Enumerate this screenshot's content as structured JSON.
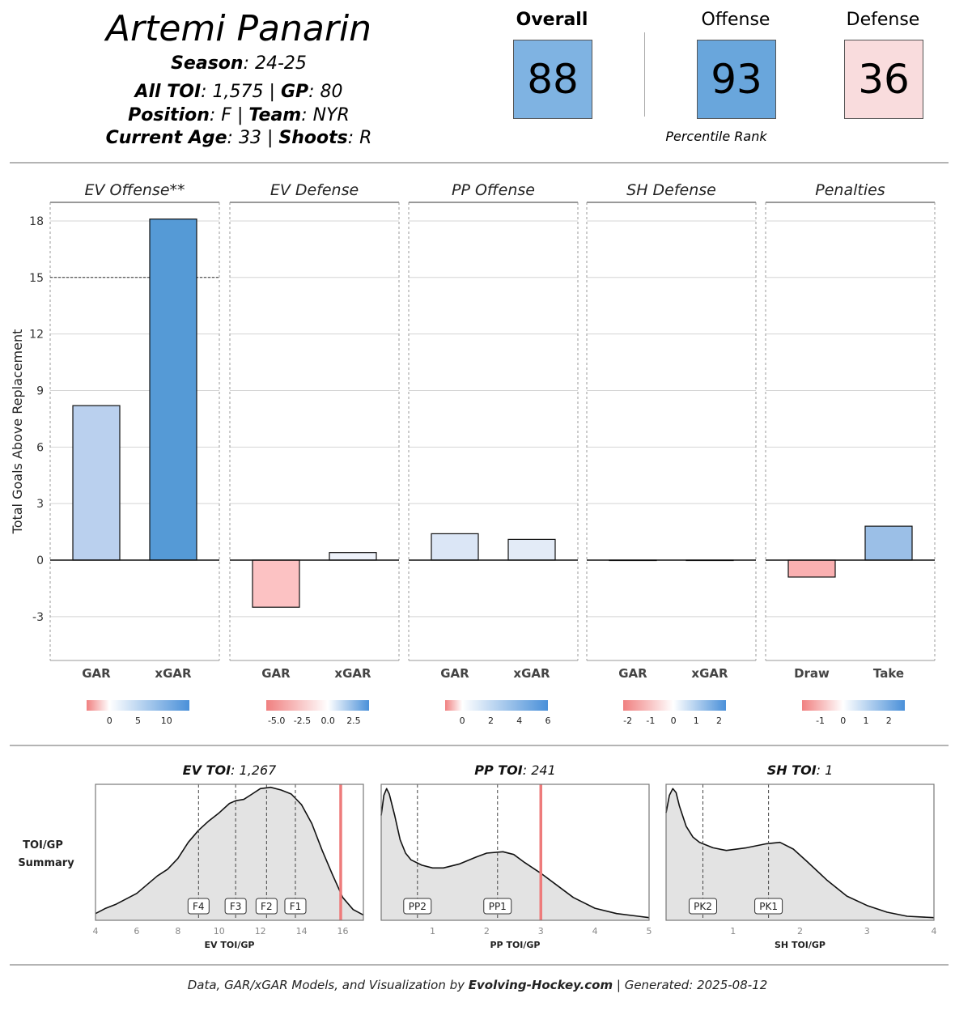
{
  "player": {
    "name": "Artemi Panarin",
    "season_label": "Season",
    "season": "24-25",
    "toi_label": "All TOI",
    "toi": "1,575",
    "gp_label": "GP",
    "gp": "80",
    "position_label": "Position",
    "position": "F",
    "team_label": "Team",
    "team": "NYR",
    "age_label": "Current Age",
    "age": "33",
    "shoots_label": "Shoots",
    "shoots": "R"
  },
  "ranks": {
    "overall": {
      "label": "Overall",
      "value": "88",
      "color": "#7fb3e2"
    },
    "offense": {
      "label": "Offense",
      "value": "93",
      "color": "#69a6dc"
    },
    "defense": {
      "label": "Defense",
      "value": "36",
      "color": "#f9dcdd"
    },
    "caption": "Percentile Rank"
  },
  "chart_data": [
    {
      "type": "bar",
      "ylabel": "Total Goals Above Replacement",
      "ylim": [
        -4.5,
        19
      ],
      "yticks": [
        "-3",
        "0",
        "3",
        "6",
        "9",
        "12",
        "15",
        "18"
      ],
      "reference_line": 15,
      "panels": [
        {
          "title": "EV Offense**",
          "categories": [
            "GAR",
            "xGAR"
          ],
          "values": [
            8.2,
            18.1
          ],
          "colors": [
            "#bad0ee",
            "#559ad6"
          ],
          "legend_ticks": [
            "0",
            "5",
            "10"
          ],
          "legend_range": [
            -4,
            14
          ]
        },
        {
          "title": "EV Defense",
          "categories": [
            "GAR",
            "xGAR"
          ],
          "values": [
            -2.5,
            0.4
          ],
          "colors": [
            "#fcc2c3",
            "#eef2fa"
          ],
          "legend_ticks": [
            "-5.0",
            "-2.5",
            "0.0",
            "2.5"
          ],
          "legend_range": [
            -6,
            4
          ]
        },
        {
          "title": "PP Offense",
          "categories": [
            "GAR",
            "xGAR"
          ],
          "values": [
            1.4,
            1.1
          ],
          "colors": [
            "#dbe6f6",
            "#e3ebf7"
          ],
          "legend_ticks": [
            "0",
            "2",
            "4",
            "6"
          ],
          "legend_range": [
            -1.2,
            6
          ]
        },
        {
          "title": "SH Defense",
          "categories": [
            "GAR",
            "xGAR"
          ],
          "values": [
            0,
            0
          ],
          "colors": [
            "#ffffff",
            "#ffffff"
          ],
          "legend_ticks": [
            "-2",
            "-1",
            "0",
            "1",
            "2"
          ],
          "legend_range": [
            -2.2,
            2.3
          ]
        },
        {
          "title": "Penalties",
          "categories": [
            "Draw",
            "Take"
          ],
          "values": [
            -0.9,
            1.8
          ],
          "colors": [
            "#fab0b1",
            "#9bbfe7"
          ],
          "legend_ticks": [
            "-1",
            "0",
            "1",
            "2"
          ],
          "legend_range": [
            -1.8,
            2.7
          ]
        }
      ]
    },
    {
      "type": "area",
      "side_label": [
        "TOI/GP",
        "Summary"
      ],
      "panels": [
        {
          "title_bold": "EV TOI",
          "title_value": "1,267",
          "xlabel": "EV TOI/GP",
          "xlim": [
            4,
            17
          ],
          "xticks": [
            "4",
            "6",
            "8",
            "10",
            "12",
            "14",
            "16"
          ],
          "x": [
            4,
            4.5,
            5,
            6,
            7,
            7.5,
            8,
            8.5,
            9,
            9.5,
            10,
            10.5,
            10.8,
            11.2,
            11.6,
            12,
            12.5,
            13,
            13.5,
            14,
            14.5,
            15,
            15.5,
            16,
            16.5,
            17
          ],
          "density": [
            0.05,
            0.09,
            0.12,
            0.2,
            0.33,
            0.38,
            0.46,
            0.58,
            0.67,
            0.74,
            0.8,
            0.87,
            0.89,
            0.9,
            0.94,
            0.98,
            0.99,
            0.97,
            0.94,
            0.86,
            0.72,
            0.52,
            0.34,
            0.17,
            0.08,
            0.04
          ],
          "markers": [
            {
              "label": "F4",
              "x": 9.0
            },
            {
              "label": "F3",
              "x": 10.8
            },
            {
              "label": "F2",
              "x": 12.3
            },
            {
              "label": "F1",
              "x": 13.7
            }
          ],
          "player_value": 15.9
        },
        {
          "title_bold": "PP TOI",
          "title_value": "241",
          "xlabel": "PP TOI/GP",
          "xlim": [
            0.05,
            5
          ],
          "xticks": [
            "1",
            "2",
            "3",
            "4",
            "5"
          ],
          "x": [
            0.05,
            0.1,
            0.15,
            0.2,
            0.3,
            0.4,
            0.5,
            0.6,
            0.8,
            1.0,
            1.2,
            1.5,
            1.8,
            2.0,
            2.3,
            2.5,
            2.7,
            3.0,
            3.3,
            3.6,
            4.0,
            4.4,
            4.8,
            5.0
          ],
          "density": [
            0.78,
            0.93,
            0.98,
            0.94,
            0.78,
            0.6,
            0.5,
            0.45,
            0.41,
            0.39,
            0.39,
            0.42,
            0.47,
            0.5,
            0.51,
            0.49,
            0.43,
            0.35,
            0.26,
            0.17,
            0.09,
            0.05,
            0.03,
            0.02
          ],
          "markers": [
            {
              "label": "PP2",
              "x": 0.72
            },
            {
              "label": "PP1",
              "x": 2.2
            }
          ],
          "player_value": 3.0
        },
        {
          "title_bold": "SH TOI",
          "title_value": "1",
          "xlabel": "SH TOI/GP",
          "xlim": [
            0,
            4
          ],
          "xticks": [
            "1",
            "2",
            "3",
            "4"
          ],
          "x": [
            0,
            0.05,
            0.1,
            0.15,
            0.2,
            0.3,
            0.4,
            0.5,
            0.7,
            0.9,
            1.2,
            1.5,
            1.7,
            1.9,
            2.1,
            2.4,
            2.7,
            3.0,
            3.3,
            3.6,
            4.0
          ],
          "density": [
            0.8,
            0.93,
            0.98,
            0.95,
            0.85,
            0.7,
            0.62,
            0.58,
            0.54,
            0.52,
            0.54,
            0.57,
            0.58,
            0.53,
            0.44,
            0.3,
            0.18,
            0.11,
            0.06,
            0.03,
            0.02
          ],
          "markers": [
            {
              "label": "PK2",
              "x": 0.55
            },
            {
              "label": "PK1",
              "x": 1.53
            }
          ],
          "player_value": null
        }
      ]
    }
  ],
  "footer": {
    "prefix": "Data, GAR/xGAR Models, and Visualization by ",
    "brand": "Evolving-Hockey.com",
    "suffix": " | Generated: 2025-08-12"
  }
}
